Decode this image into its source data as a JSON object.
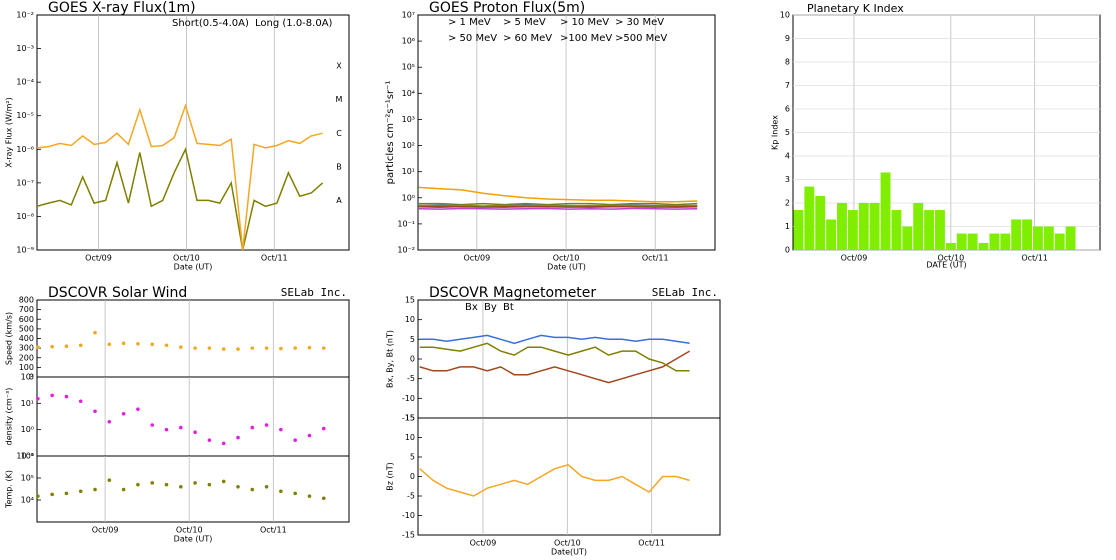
{
  "chart_data": [
    {
      "type": "line",
      "title": "GOES X-ray Flux(1m)",
      "ylabel": "X-ray Flux (W/m²)",
      "xlabel": "Date (UT)",
      "log_y": true,
      "ylim": [
        1e-09,
        0.01
      ],
      "yticks": [
        {
          "value": 1e-09,
          "label": "10⁻⁹"
        },
        {
          "value": 1e-08,
          "label": "10⁻⁸"
        },
        {
          "value": 1e-07,
          "label": "10⁻⁷"
        },
        {
          "value": 1e-06,
          "label": "10⁻⁶"
        },
        {
          "value": 1e-05,
          "label": "10⁻⁵"
        },
        {
          "value": 0.0001,
          "label": "10⁻⁴"
        },
        {
          "value": 0.001,
          "label": "10⁻³"
        },
        {
          "value": 0.01,
          "label": "10⁻²"
        }
      ],
      "class_ticks": [
        {
          "value": 3e-08,
          "label": "A"
        },
        {
          "value": 3e-07,
          "label": "B"
        },
        {
          "value": 3e-06,
          "label": "C"
        },
        {
          "value": 3e-05,
          "label": "M"
        },
        {
          "value": 0.0003,
          "label": "X"
        }
      ],
      "xlim": [
        0.3,
        3.85
      ],
      "xticks": [
        {
          "value": 1,
          "label": "Oct/09"
        },
        {
          "value": 2,
          "label": "Oct/10"
        },
        {
          "value": 3,
          "label": "Oct/11"
        }
      ],
      "x": [
        0.3,
        0.43,
        0.56,
        0.69,
        0.82,
        0.95,
        1.08,
        1.21,
        1.34,
        1.47,
        1.6,
        1.73,
        1.86,
        1.99,
        2.12,
        2.25,
        2.38,
        2.51,
        2.64,
        2.77,
        2.9,
        3.03,
        3.16,
        3.29,
        3.42,
        3.55
      ],
      "series": [
        {
          "name": "Short(0.5-4.0A)",
          "color": "#7f7f00",
          "values": [
            2e-08,
            2.5e-08,
            3e-08,
            2.2e-08,
            1.5e-07,
            2.5e-08,
            3e-08,
            4e-07,
            2.5e-08,
            8e-07,
            2e-08,
            3e-08,
            2e-07,
            1e-06,
            3e-08,
            3e-08,
            2.5e-08,
            1e-07,
            1e-09,
            3e-08,
            2e-08,
            2.5e-08,
            2e-07,
            4e-08,
            5e-08,
            1e-07
          ]
        },
        {
          "name": "Long (1.0-8.0A)",
          "color": "#f5a623",
          "values": [
            1.1e-06,
            1.2e-06,
            1.5e-06,
            1.3e-06,
            2.5e-06,
            1.4e-06,
            1.6e-06,
            3e-06,
            1.4e-06,
            1.5e-05,
            1.2e-06,
            1.3e-06,
            2.2e-06,
            2e-05,
            1.5e-06,
            1.4e-06,
            1.3e-06,
            2e-06,
            1e-09,
            1.4e-06,
            1.1e-06,
            1.3e-06,
            1.8e-06,
            1.5e-06,
            2.5e-06,
            3e-06
          ]
        }
      ]
    },
    {
      "type": "line",
      "title": "GOES Proton Flux(5m)",
      "ylabel": "particles cm⁻²s⁻¹sr⁻¹",
      "xlabel": "Date (UT)",
      "log_y": true,
      "ylim": [
        0.01,
        10000000.0
      ],
      "yticks": [
        {
          "value": 0.01,
          "label": "10⁻²"
        },
        {
          "value": 0.1,
          "label": "10⁻¹"
        },
        {
          "value": 1,
          "label": "10⁰"
        },
        {
          "value": 10,
          "label": "10¹"
        },
        {
          "value": 100,
          "label": "10²"
        },
        {
          "value": 1000,
          "label": "10³"
        },
        {
          "value": 10000,
          "label": "10⁴"
        },
        {
          "value": 100000,
          "label": "10⁵"
        },
        {
          "value": 1000000,
          "label": "10⁶"
        },
        {
          "value": 10000000,
          "label": "10⁷"
        }
      ],
      "xlim": [
        0.34,
        3.67
      ],
      "xticks": [
        {
          "value": 1,
          "label": "Oct/09"
        },
        {
          "value": 2,
          "label": "Oct/10"
        },
        {
          "value": 3,
          "label": "Oct/11"
        }
      ],
      "x": [
        0.35,
        0.59,
        0.83,
        1.07,
        1.31,
        1.55,
        1.79,
        2.03,
        2.27,
        2.51,
        2.75,
        2.99,
        3.23,
        3.47
      ],
      "series": [
        {
          "name": ">  1 MeV",
          "color": "#f5a000",
          "values": [
            2.5,
            2.2,
            2,
            1.5,
            1.2,
            1,
            0.9,
            0.85,
            0.8,
            0.8,
            0.75,
            0.7,
            0.7,
            0.75
          ]
        },
        {
          "name": ">  5 MeV",
          "color": "#7f7f00",
          "values": [
            0.6,
            0.6,
            0.55,
            0.6,
            0.55,
            0.6,
            0.55,
            0.6,
            0.6,
            0.55,
            0.6,
            0.6,
            0.55,
            0.6
          ]
        },
        {
          "name": "> 10 MeV",
          "color": "#3a6fd8",
          "values": [
            0.5,
            0.52,
            0.5,
            0.48,
            0.5,
            0.52,
            0.5,
            0.5,
            0.48,
            0.5,
            0.52,
            0.5,
            0.5,
            0.5
          ]
        },
        {
          "name": "> 30 MeV",
          "color": "#e8b080",
          "values": [
            0.48,
            0.47,
            0.48,
            0.46,
            0.48,
            0.47,
            0.48,
            0.46,
            0.47,
            0.48,
            0.47,
            0.46,
            0.48,
            0.47
          ]
        },
        {
          "name": "> 50 MeV",
          "color": "#2f4f4f",
          "values": [
            0.45,
            0.44,
            0.46,
            0.45,
            0.44,
            0.45,
            0.46,
            0.45,
            0.44,
            0.45,
            0.46,
            0.45,
            0.44,
            0.45
          ]
        },
        {
          "name": "> 60 MeV",
          "color": "#22bb22",
          "values": [
            0.5,
            0.49,
            0.5,
            0.48,
            0.5,
            0.49,
            0.5,
            0.48,
            0.5,
            0.49,
            0.5,
            0.48,
            0.5,
            0.49
          ]
        },
        {
          "name": ">100 MeV",
          "color": "#a0461e",
          "values": [
            0.45,
            0.46,
            0.45,
            0.44,
            0.45,
            0.46,
            0.45,
            0.44,
            0.45,
            0.46,
            0.45,
            0.44,
            0.45,
            0.46
          ]
        },
        {
          "name": ">500 MeV",
          "color": "#c040d0",
          "values": [
            0.38,
            0.37,
            0.39,
            0.38,
            0.37,
            0.38,
            0.39,
            0.37,
            0.38,
            0.37,
            0.39,
            0.38,
            0.37,
            0.38
          ]
        }
      ]
    },
    {
      "type": "bar",
      "title": "Planetary K Index",
      "ylabel": "Kp Index",
      "xlabel": "DATE (UT)",
      "color": "#80ee00",
      "grid": true,
      "ylim": [
        0,
        10
      ],
      "yticks": [
        0,
        1,
        2,
        3,
        4,
        5,
        6,
        7,
        8,
        9,
        10
      ],
      "xlim": [
        0,
        28.2
      ],
      "xticks": [
        {
          "value": 5.6,
          "label": "Oct/09"
        },
        {
          "value": 14.5,
          "label": "Oct/10"
        },
        {
          "value": 22.2,
          "label": "Oct/11"
        }
      ],
      "values": [
        1.7,
        2.7,
        2.3,
        1.3,
        2.0,
        1.7,
        2.0,
        2.0,
        3.3,
        1.7,
        1.0,
        2.0,
        1.7,
        1.7,
        0.3,
        0.7,
        0.7,
        0.3,
        0.7,
        0.7,
        1.3,
        1.3,
        1.0,
        1.0,
        0.7,
        1.0
      ]
    },
    {
      "type": "scatter",
      "title": "DSCOVR Solar Wind",
      "credit": "SELab Inc.",
      "ylabel": "Speed (km/s)",
      "color": "#f5a623",
      "ylim": [
        0,
        800
      ],
      "yticks": [
        0,
        100,
        200,
        300,
        400,
        500,
        600,
        700,
        800
      ],
      "xlim": [
        0.19,
        3.9
      ],
      "x": [
        0.2,
        0.37,
        0.54,
        0.71,
        0.88,
        1.05,
        1.22,
        1.39,
        1.56,
        1.73,
        1.9,
        2.07,
        2.24,
        2.41,
        2.58,
        2.75,
        2.92,
        3.09,
        3.26,
        3.43,
        3.6
      ],
      "values": [
        310,
        315,
        320,
        330,
        460,
        340,
        350,
        345,
        340,
        330,
        310,
        300,
        300,
        290,
        290,
        300,
        300,
        295,
        300,
        305,
        300
      ]
    },
    {
      "type": "scatter",
      "ylabel": "density (cm⁻³)",
      "color": "#e020e0",
      "log_y": true,
      "ylim": [
        0.1,
        100
      ],
      "yticks": [
        {
          "value": 0.1,
          "label": "10⁻¹"
        },
        {
          "value": 1,
          "label": "10⁰"
        },
        {
          "value": 10,
          "label": "10¹"
        },
        {
          "value": 100,
          "label": "10²"
        }
      ],
      "xlim": [
        0.19,
        3.9
      ],
      "x": [
        0.2,
        0.37,
        0.54,
        0.71,
        0.88,
        1.05,
        1.22,
        1.39,
        1.56,
        1.73,
        1.9,
        2.07,
        2.24,
        2.41,
        2.58,
        2.75,
        2.92,
        3.09,
        3.26,
        3.43,
        3.6
      ],
      "values": [
        15,
        20,
        18,
        12,
        5,
        2,
        4,
        6,
        1.5,
        1,
        1.2,
        0.8,
        0.4,
        0.3,
        0.5,
        1.2,
        1.5,
        1,
        0.4,
        0.6,
        1.1
      ]
    },
    {
      "type": "scatter",
      "ylabel": "Temp. (K)",
      "xlabel": "Date (UT)",
      "color": "#7f7f00",
      "log_y": true,
      "ylim": [
        1000,
        1000000
      ],
      "yticks": [
        {
          "value": 10000,
          "label": "10⁴"
        },
        {
          "value": 100000,
          "label": "10⁵"
        },
        {
          "value": 1000000,
          "label": "10⁶"
        }
      ],
      "xlim": [
        0.19,
        3.9
      ],
      "xticks": [
        {
          "value": 1,
          "label": "Oct/09"
        },
        {
          "value": 2,
          "label": "Oct/10"
        },
        {
          "value": 3,
          "label": "Oct/11"
        }
      ],
      "x": [
        0.2,
        0.37,
        0.54,
        0.71,
        0.88,
        1.05,
        1.22,
        1.39,
        1.56,
        1.73,
        1.9,
        2.07,
        2.24,
        2.41,
        2.58,
        2.75,
        2.92,
        3.09,
        3.26,
        3.43,
        3.6
      ],
      "values": [
        15000,
        18000,
        20000,
        25000,
        30000,
        80000,
        30000,
        50000,
        60000,
        50000,
        40000,
        60000,
        50000,
        70000,
        40000,
        30000,
        40000,
        25000,
        20000,
        15000,
        12000
      ]
    },
    {
      "type": "line",
      "title": "DSCOVR Magnetometer",
      "credit": "SELab Inc.",
      "ylabel": "Bx, By, Bt (nT)",
      "ylim": [
        -15,
        15
      ],
      "yticks": [
        -15,
        -10,
        -5,
        0,
        5,
        10,
        15
      ],
      "xlim": [
        0.23,
        3.81
      ],
      "x": [
        0.25,
        0.41,
        0.57,
        0.73,
        0.89,
        1.05,
        1.21,
        1.37,
        1.53,
        1.69,
        1.85,
        2.01,
        2.17,
        2.33,
        2.49,
        2.65,
        2.81,
        2.97,
        3.13,
        3.29,
        3.45
      ],
      "series": [
        {
          "name": "Bx",
          "color": "#a0461e",
          "values": [
            -2,
            -3,
            -3,
            -2,
            -2,
            -3,
            -2,
            -4,
            -4,
            -3,
            -2,
            -3,
            -4,
            -5,
            -6,
            -5,
            -4,
            -3,
            -2,
            0,
            2
          ]
        },
        {
          "name": "By",
          "color": "#7f7f00",
          "values": [
            3,
            3,
            2.5,
            2,
            3,
            4,
            2,
            1,
            3,
            3,
            2,
            1,
            2,
            3,
            1,
            2,
            2,
            0,
            -1,
            -3,
            -3
          ]
        },
        {
          "name": "Bt",
          "color": "#3a6fd8",
          "values": [
            5,
            5,
            4.5,
            5,
            5.5,
            6,
            5,
            4,
            5,
            6,
            5.5,
            5.5,
            5,
            5.5,
            5,
            5,
            4.5,
            5,
            5,
            4.5,
            4
          ]
        }
      ]
    },
    {
      "type": "line",
      "ylabel": "Bz (nT)",
      "xlabel": "Date(UT)",
      "ylim": [
        -15,
        15
      ],
      "yticks": [
        -15,
        -10,
        -5,
        0,
        5,
        10,
        15
      ],
      "xlim": [
        0.23,
        3.81
      ],
      "xticks": [
        {
          "value": 1,
          "label": "Oct/09"
        },
        {
          "value": 2,
          "label": "Oct/10"
        },
        {
          "value": 3,
          "label": "Oct/11"
        }
      ],
      "x": [
        0.25,
        0.41,
        0.57,
        0.73,
        0.89,
        1.05,
        1.21,
        1.37,
        1.53,
        1.69,
        1.85,
        2.01,
        2.17,
        2.33,
        2.49,
        2.65,
        2.81,
        2.97,
        3.13,
        3.29,
        3.45
      ],
      "series": [
        {
          "name": "Bz",
          "color": "#f5a623",
          "values": [
            2,
            -1,
            -3,
            -4,
            -5,
            -3,
            -2,
            -1,
            -2,
            0,
            2,
            3,
            0,
            -1,
            -1,
            0,
            -2,
            -4,
            0,
            0,
            -1
          ]
        }
      ]
    }
  ]
}
